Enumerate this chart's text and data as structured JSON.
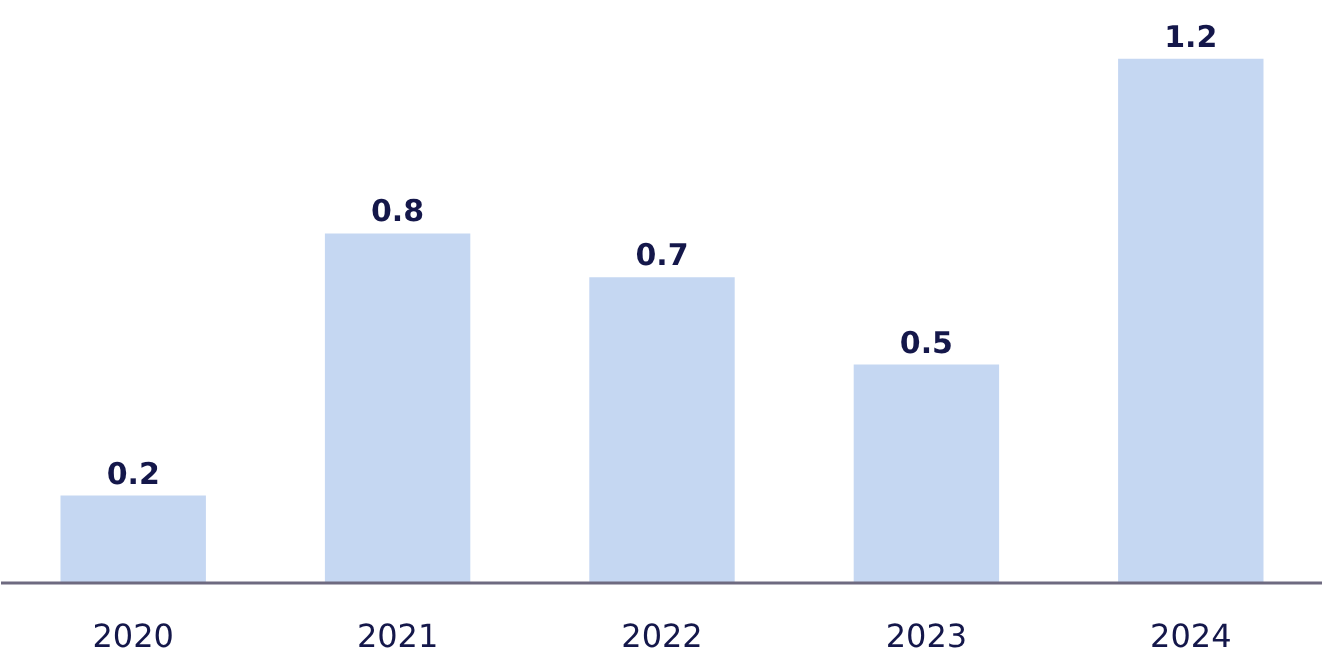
{
  "chart_data": {
    "type": "bar",
    "categories": [
      "2020",
      "2021",
      "2022",
      "2023",
      "2024"
    ],
    "values": [
      0.2,
      0.8,
      0.7,
      0.5,
      1.2
    ],
    "color": "#c5d7f2",
    "data_labels": true
  }
}
